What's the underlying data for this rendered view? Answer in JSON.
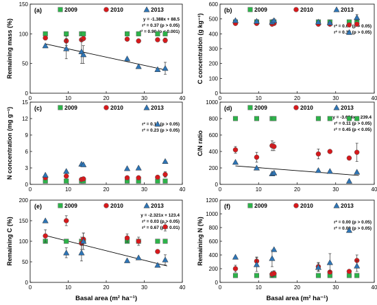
{
  "colors": {
    "2009": "#2db34a",
    "2010": "#d7191c",
    "2013": "#2e75b6",
    "regression": "#000000"
  },
  "legend": [
    "2009",
    "2010",
    "2013"
  ],
  "xlabel": "Basal area (m² ha⁻¹)",
  "chart_data": [
    {
      "type": "scatter",
      "panel": "(a)",
      "ylabel": "Remaining mass (%)",
      "xlim": [
        0,
        40
      ],
      "ylim": [
        0,
        150
      ],
      "xticks": [
        0,
        10,
        20,
        30,
        40
      ],
      "yticks": [
        0,
        50,
        100,
        150
      ],
      "series": [
        {
          "name": "2009",
          "x": [
            4,
            9.5,
            13.5,
            14,
            25.5,
            28.5,
            33.5,
            35.5
          ],
          "y": [
            100,
            100,
            100,
            100,
            100,
            100,
            100,
            100
          ],
          "err": [
            0,
            0,
            0,
            0,
            0,
            0,
            0,
            0
          ]
        },
        {
          "name": "2010",
          "x": [
            4,
            9.5,
            13.5,
            14,
            25.5,
            28.5,
            33.5,
            35.5
          ],
          "y": [
            93,
            88,
            90,
            92,
            91,
            88,
            90,
            89
          ],
          "err": [
            0,
            8,
            0,
            3,
            0,
            0,
            0,
            4
          ]
        },
        {
          "name": "2013",
          "x": [
            4,
            9.5,
            13.5,
            14,
            25.5,
            28.5,
            33.5,
            35.5
          ],
          "y": [
            80,
            75,
            70,
            65,
            58,
            45,
            40,
            42
          ],
          "err": [
            0,
            17,
            20,
            15,
            0,
            0,
            0,
            10
          ]
        }
      ],
      "annotations": [
        "y = -1.388x + 88.5",
        "r² = 0.37 (p > 0.05)",
        "r² = 0.90 (p < 0.001)"
      ],
      "regression": {
        "slope": -1.388,
        "intercept": 88.5,
        "x": [
          4,
          36
        ]
      }
    },
    {
      "type": "scatter",
      "panel": "(b)",
      "ylabel": "C concentration (g kg⁻¹)",
      "xlim": [
        0,
        40
      ],
      "ylim": [
        0,
        600
      ],
      "xticks": [
        0,
        10,
        20,
        30,
        40
      ],
      "yticks": [
        0,
        100,
        200,
        300,
        400,
        500,
        600
      ],
      "series": [
        {
          "name": "2009",
          "x": [
            4,
            9.5,
            13.5,
            14,
            25.5,
            28.5,
            33.5,
            35.5
          ],
          "y": [
            480,
            480,
            480,
            480,
            480,
            480,
            480,
            480
          ],
          "err": [
            0,
            0,
            0,
            0,
            0,
            0,
            0,
            0
          ]
        },
        {
          "name": "2010",
          "x": [
            4,
            9.5,
            13.5,
            14,
            25.5,
            28.5,
            33.5,
            35.5
          ],
          "y": [
            470,
            470,
            465,
            470,
            465,
            465,
            460,
            465
          ],
          "err": [
            0,
            0,
            0,
            0,
            0,
            0,
            0,
            0
          ]
        },
        {
          "name": "2013",
          "x": [
            4,
            9.5,
            13.5,
            14,
            25.5,
            28.5,
            33.5,
            35.5
          ],
          "y": [
            490,
            485,
            480,
            490,
            480,
            475,
            410,
            510
          ],
          "err": [
            0,
            10,
            10,
            10,
            0,
            0,
            0,
            20
          ]
        }
      ],
      "annotations": [
        "r² = 0.06 (p > 0.05)",
        "r² = 0.32 (p > 0.05)"
      ]
    },
    {
      "type": "scatter",
      "panel": "(c)",
      "ylabel": "N concentration (mg g⁻¹)",
      "xlim": [
        0,
        40
      ],
      "ylim": [
        0,
        15
      ],
      "xticks": [
        0,
        10,
        20,
        30,
        40
      ],
      "yticks": [
        0,
        3,
        6,
        9,
        12,
        15
      ],
      "series": [
        {
          "name": "2009",
          "x": [
            4,
            9.5,
            13.5,
            14,
            25.5,
            28.5,
            33.5,
            35.5
          ],
          "y": [
            0.6,
            0.6,
            0.6,
            0.6,
            0.6,
            0.6,
            0.6,
            0.6
          ],
          "err": [
            0,
            0,
            0,
            0,
            0,
            0,
            0,
            0
          ]
        },
        {
          "name": "2010",
          "x": [
            4,
            9.5,
            13.5,
            14,
            25.5,
            28.5,
            33.5,
            35.5
          ],
          "y": [
            1.2,
            1.5,
            0.9,
            1.0,
            1.2,
            1.2,
            1.3,
            1.8
          ],
          "err": [
            0,
            0,
            0,
            0,
            0,
            0,
            0,
            0.5
          ]
        },
        {
          "name": "2013",
          "x": [
            4,
            9.5,
            13.5,
            14,
            25.5,
            28.5,
            33.5,
            35.5
          ],
          "y": [
            1.7,
            2.4,
            3.7,
            3.6,
            2.9,
            3.0,
            11.0,
            4.2
          ],
          "err": [
            0,
            0,
            0,
            0,
            0,
            0,
            0,
            0
          ]
        }
      ],
      "annotations": [
        "r² = 0.16 (p > 0.05)",
        "r² = 0.23 (p > 0.05)"
      ]
    },
    {
      "type": "scatter",
      "panel": "(d)",
      "ylabel": "C/N ratio",
      "xlim": [
        0,
        40
      ],
      "ylim": [
        0,
        1000
      ],
      "xticks": [
        0,
        10,
        20,
        30,
        40
      ],
      "yticks": [
        0,
        200,
        400,
        600,
        800,
        1000
      ],
      "series": [
        {
          "name": "2009",
          "x": [
            4,
            9.5,
            13.5,
            14,
            25.5,
            28.5,
            33.5,
            35.5
          ],
          "y": [
            800,
            800,
            800,
            800,
            800,
            800,
            800,
            800
          ],
          "err": [
            0,
            0,
            0,
            0,
            0,
            0,
            0,
            0
          ]
        },
        {
          "name": "2010",
          "x": [
            4,
            9.5,
            13.5,
            14,
            25.5,
            28.5,
            33.5,
            35.5
          ],
          "y": [
            420,
            330,
            470,
            460,
            370,
            400,
            320,
            390
          ],
          "err": [
            40,
            60,
            60,
            50,
            60,
            0,
            0,
            110
          ]
        },
        {
          "name": "2013",
          "x": [
            4,
            9.5,
            13.5,
            14,
            25.5,
            28.5,
            33.5,
            35.5
          ],
          "y": [
            270,
            200,
            130,
            140,
            170,
            160,
            40,
            150
          ],
          "err": [
            0,
            0,
            0,
            0,
            0,
            0,
            0,
            0
          ]
        }
      ],
      "annotations": [
        "y = -3.634x + 239.4",
        "r² = 0.11 (p > 0.05)",
        "r² = 0.45 (p < 0.05)"
      ],
      "regression": {
        "slope": -3.634,
        "intercept": 239.4,
        "x": [
          4,
          36
        ]
      }
    },
    {
      "type": "scatter",
      "panel": "(e)",
      "ylabel": "Remaining C (%)",
      "xlim": [
        0,
        40
      ],
      "ylim": [
        0,
        200
      ],
      "xticks": [
        0,
        10,
        20,
        30,
        40
      ],
      "yticks": [
        0,
        50,
        100,
        150,
        200
      ],
      "series": [
        {
          "name": "2009",
          "x": [
            4,
            9.5,
            13.5,
            14,
            25.5,
            28.5,
            33.5,
            35.5
          ],
          "y": [
            100,
            100,
            100,
            100,
            100,
            100,
            100,
            100
          ],
          "err": [
            0,
            0,
            0,
            0,
            0,
            0,
            0,
            0
          ]
        },
        {
          "name": "2010",
          "x": [
            4,
            9.5,
            13.5,
            14,
            25.5,
            28.5,
            33.5,
            35.5
          ],
          "y": [
            113,
            150,
            95,
            105,
            108,
            100,
            75,
            135
          ],
          "err": [
            15,
            12,
            15,
            15,
            10,
            10,
            0,
            10
          ]
        },
        {
          "name": "2013",
          "x": [
            4,
            9.5,
            13.5,
            14,
            25.5,
            28.5,
            33.5,
            35.5
          ],
          "y": [
            150,
            72,
            72,
            100,
            53,
            60,
            42,
            55
          ],
          "err": [
            0,
            12,
            20,
            20,
            0,
            0,
            0,
            12
          ]
        }
      ],
      "annotations": [
        "y = -2.321x + 123.4",
        "r² = 0.03 (p > 0.05)",
        "r² = 0.67 (p < 0.01)"
      ],
      "regression": {
        "slope": -2.321,
        "intercept": 123.4,
        "x": [
          4,
          36
        ]
      }
    },
    {
      "type": "scatter",
      "panel": "(f)",
      "ylabel": "Remaining N (%)",
      "xlim": [
        0,
        40
      ],
      "ylim": [
        0,
        1200
      ],
      "xticks": [
        0,
        10,
        20,
        30,
        40
      ],
      "yticks": [
        0,
        200,
        400,
        600,
        800,
        1000,
        1200
      ],
      "series": [
        {
          "name": "2009",
          "x": [
            4,
            9.5,
            13.5,
            14,
            25.5,
            28.5,
            33.5,
            35.5
          ],
          "y": [
            100,
            100,
            100,
            100,
            100,
            100,
            100,
            100
          ],
          "err": [
            0,
            0,
            0,
            0,
            0,
            0,
            0,
            0
          ]
        },
        {
          "name": "2010",
          "x": [
            4,
            9.5,
            13.5,
            14,
            25.5,
            28.5,
            33.5,
            35.5
          ],
          "y": [
            200,
            310,
            120,
            130,
            230,
            150,
            160,
            320
          ],
          "err": [
            50,
            60,
            40,
            40,
            60,
            0,
            0,
            80
          ]
        },
        {
          "name": "2013",
          "x": [
            4,
            9.5,
            13.5,
            14,
            25.5,
            28.5,
            33.5,
            35.5
          ],
          "y": [
            370,
            260,
            350,
            480,
            220,
            290,
            760,
            240
          ],
          "err": [
            0,
            100,
            120,
            0,
            60,
            130,
            0,
            80
          ]
        }
      ],
      "annotations": [
        "r² = 0.00 (p > 0.05)",
        "r² = 0.00 (p > 0.05)"
      ]
    }
  ]
}
